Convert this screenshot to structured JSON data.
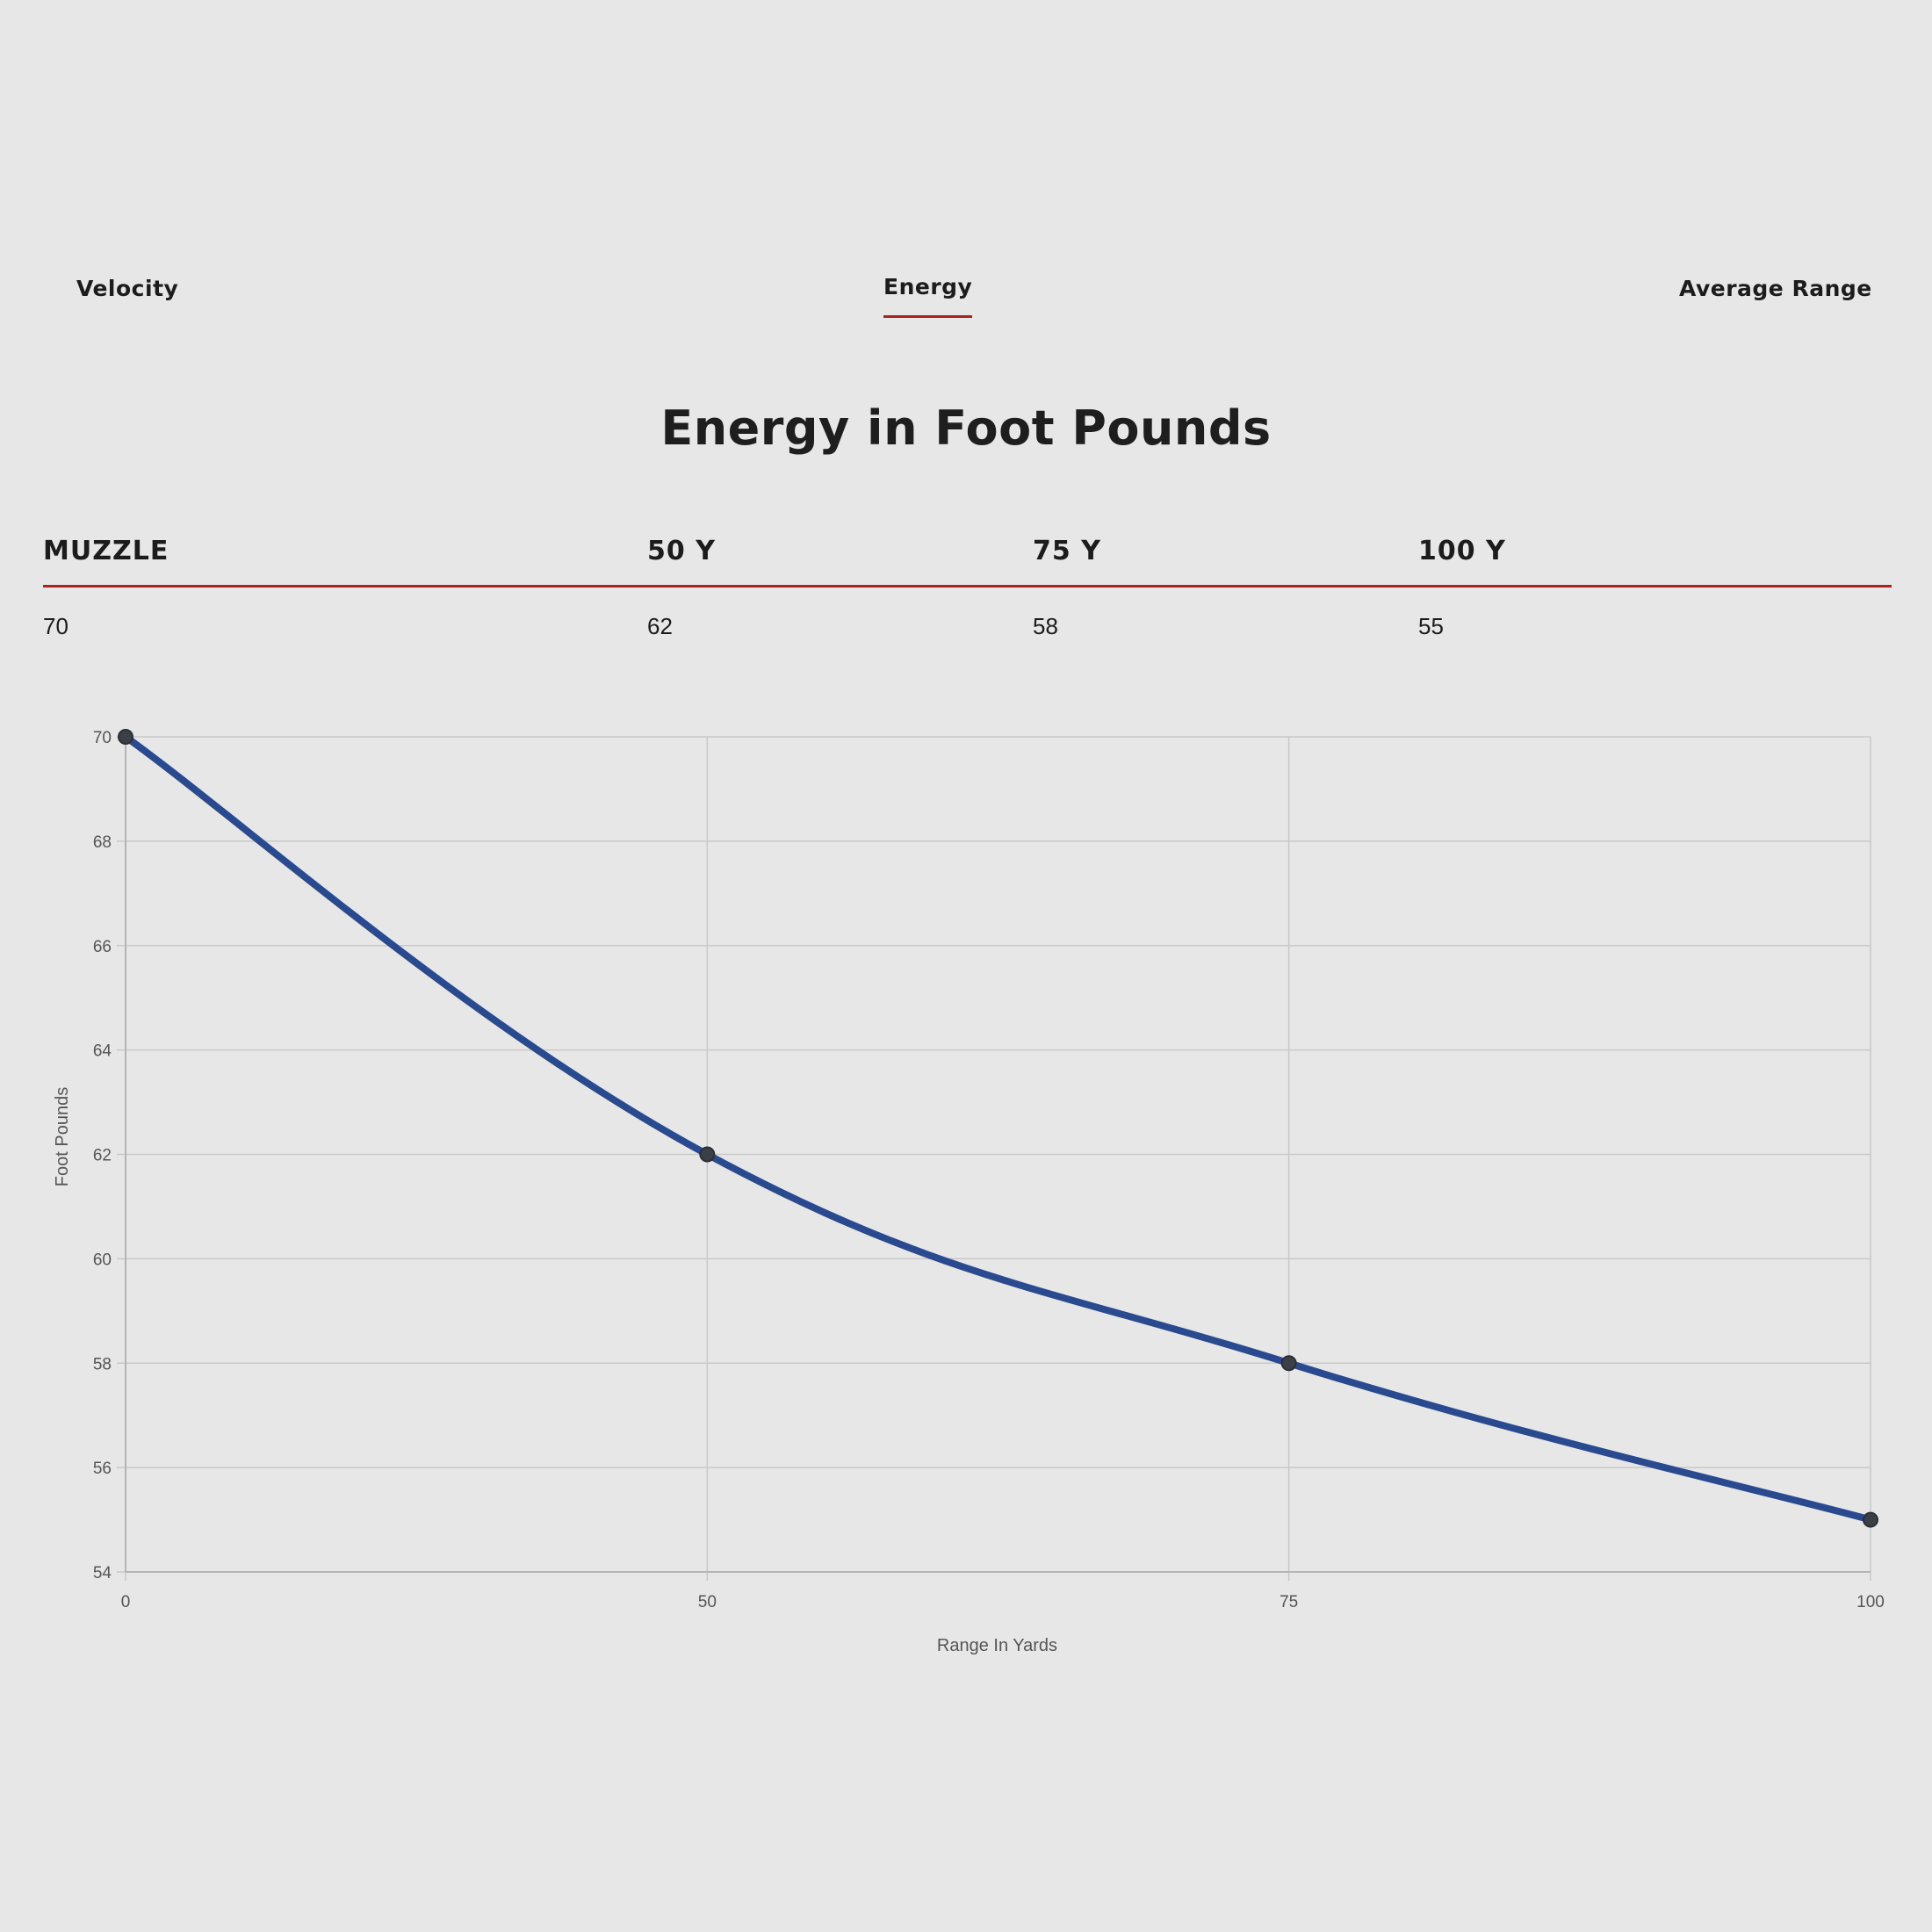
{
  "tabs": [
    {
      "label": "Velocity",
      "active": false
    },
    {
      "label": "Energy",
      "active": true
    },
    {
      "label": "Average Range",
      "active": false
    }
  ],
  "heading": "Energy in Foot Pounds",
  "table": {
    "headers": [
      "MUZZLE",
      "50 Y",
      "75 Y",
      "100 Y"
    ],
    "values": [
      "70",
      "62",
      "58",
      "55"
    ]
  },
  "colors": {
    "accent": "#a8231e",
    "line": "#2a4a8f",
    "point": "#3a3f48",
    "grid": "#c9c9c9",
    "background": "#e7e7e7"
  },
  "chart_data": {
    "type": "line",
    "title": "",
    "xlabel": "Range In Yards",
    "ylabel": "Foot Pounds",
    "x": [
      0,
      50,
      75,
      100
    ],
    "x_tick_labels": [
      "0",
      "50",
      "75",
      "100"
    ],
    "x_positions": "categorical-evenly-spaced",
    "series": [
      {
        "values": [
          70,
          62,
          58,
          55
        ]
      }
    ],
    "ylim": [
      54,
      70
    ],
    "y_ticks": [
      54,
      56,
      58,
      60,
      62,
      64,
      66,
      68,
      70
    ],
    "grid": true,
    "legend": "none"
  }
}
